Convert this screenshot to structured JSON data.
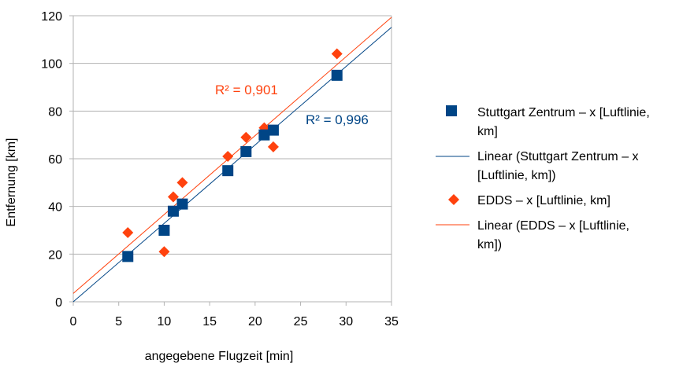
{
  "chart_data": {
    "type": "scatter",
    "title": "",
    "xlabel": "angegebene Flugzeit [min]",
    "ylabel": "Entfernung [km]",
    "xlim": [
      0,
      35
    ],
    "ylim": [
      0,
      120
    ],
    "xticks": [
      0,
      5,
      10,
      15,
      20,
      25,
      30,
      35
    ],
    "yticks": [
      0,
      20,
      40,
      60,
      80,
      100,
      120
    ],
    "grid": "horizontal",
    "legend_position": "right",
    "series": [
      {
        "name": "Stuttgart Zentrum – x [Luftlinie, km]",
        "marker": "square",
        "color": "#004586",
        "points": [
          [
            6,
            19
          ],
          [
            10,
            30
          ],
          [
            11,
            38
          ],
          [
            12,
            41
          ],
          [
            17,
            55
          ],
          [
            19,
            63
          ],
          [
            21,
            70
          ],
          [
            22,
            72
          ],
          [
            29,
            95
          ]
        ],
        "trendline": {
          "name": "Linear (Stuttgart Zentrum – x [Luftlinie, km])",
          "slope": 3.29,
          "intercept": 0.0,
          "r2_label": "R² = 0,996"
        }
      },
      {
        "name": "EDDS – x [Luftlinie, km]",
        "marker": "diamond",
        "color": "#ff420e",
        "points": [
          [
            6,
            29
          ],
          [
            10,
            21
          ],
          [
            11,
            44
          ],
          [
            12,
            50
          ],
          [
            17,
            61
          ],
          [
            19,
            69
          ],
          [
            21,
            73
          ],
          [
            22,
            65
          ],
          [
            29,
            104
          ]
        ],
        "trendline": {
          "name": "Linear (EDDS – x [Luftlinie, km])",
          "slope": 3.31,
          "intercept": 3.5,
          "r2_label": "R² = 0,901"
        }
      }
    ]
  }
}
